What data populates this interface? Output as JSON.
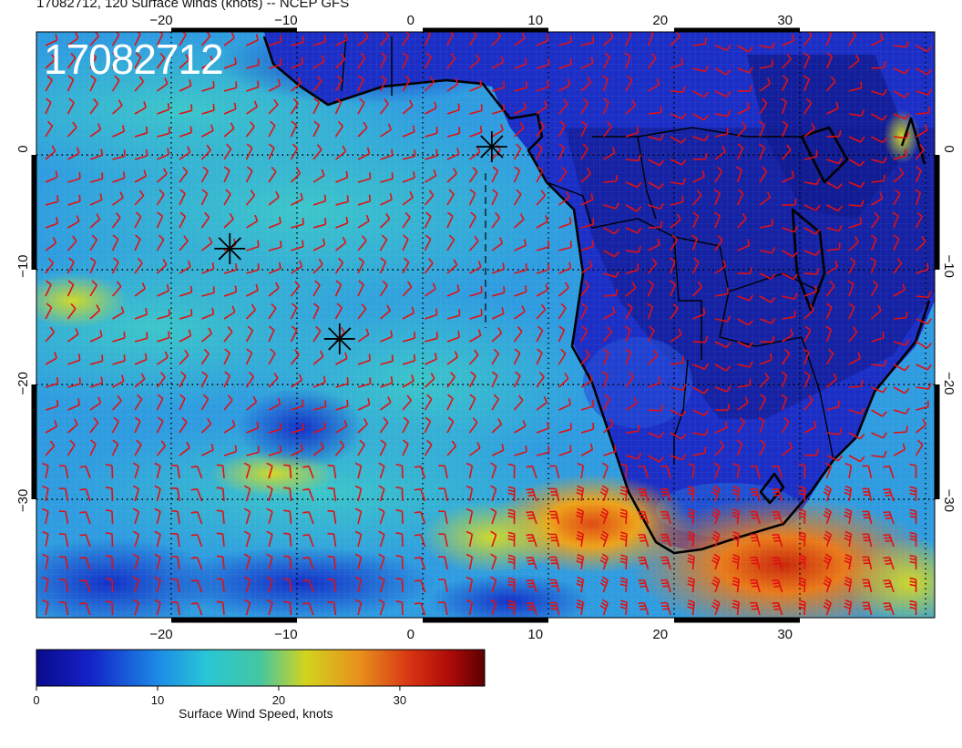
{
  "header": {
    "title": "17082712, 120 Surface winds (knots) -- NCEP GFS",
    "stamp": "17082712"
  },
  "map": {
    "region": "South Atlantic and Southern Africa",
    "lon_range": [
      -30,
      42
    ],
    "lat_range": [
      10,
      -40
    ],
    "lon_ticks": [
      "-20",
      "-10",
      "0",
      "10",
      "20",
      "30"
    ],
    "lat_ticks": [
      "0",
      "-10",
      "-20",
      "-30"
    ],
    "markers": [
      {
        "name": "star-marker",
        "lon": 6.5,
        "lat": 0.2
      },
      {
        "name": "star-marker",
        "lon": -14.5,
        "lat": -8.5
      },
      {
        "name": "star-marker",
        "lon": -5.7,
        "lat": -16.2
      }
    ],
    "colors": {
      "calm": "#0a0a8c",
      "low": "#1c3fe0",
      "mid": "#25b7d6",
      "moderate": "#43c9a5",
      "strong": "#d6d61e",
      "gale": "#e87a1c",
      "max": "#c00000",
      "barbs": "#e31010",
      "coast": "#000000"
    }
  },
  "colorbar": {
    "label": "Surface Wind Speed, knots",
    "ticks": [
      "0",
      "10",
      "20",
      "30"
    ],
    "tick_values": [
      0,
      10,
      20,
      30
    ],
    "range": [
      0,
      37
    ]
  }
}
